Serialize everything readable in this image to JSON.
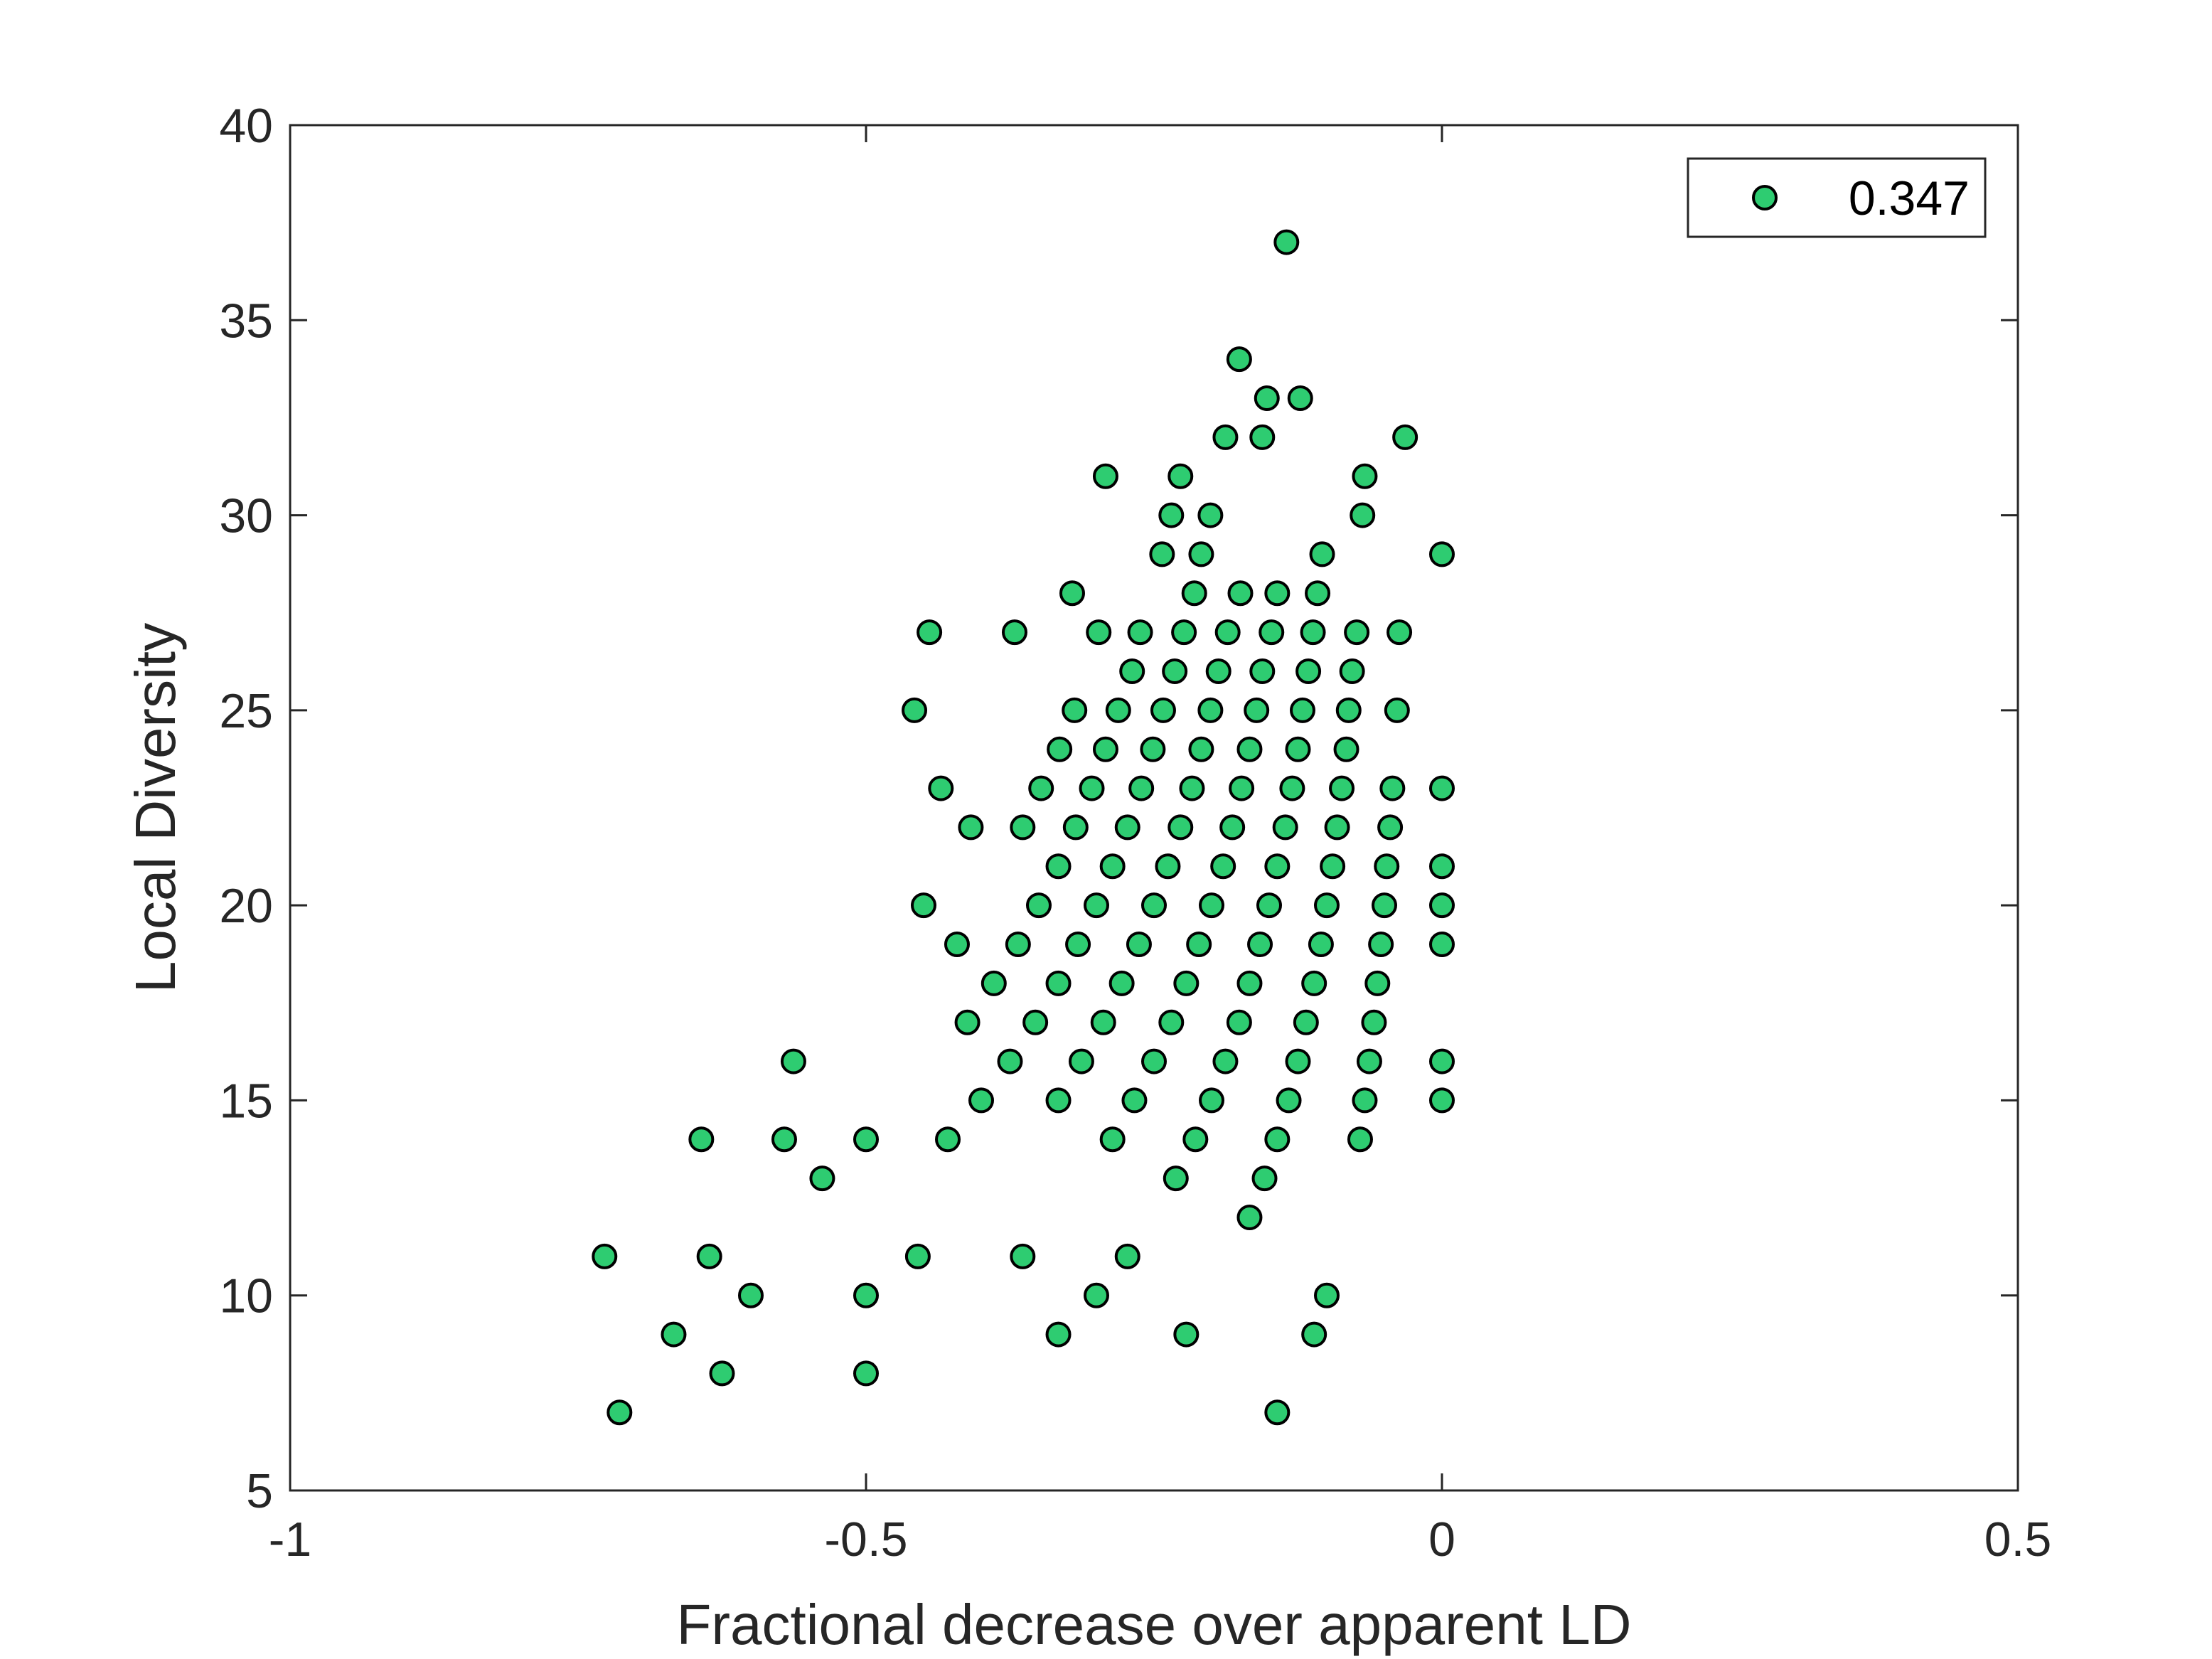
{
  "chart_data": {
    "type": "scatter",
    "title": "",
    "xlabel": "Fractional decrease over apparent LD",
    "ylabel": "Local Diversity",
    "xlim": [
      -1,
      0.5
    ],
    "ylim": [
      5,
      40
    ],
    "xticks": [
      -1,
      -0.5,
      0,
      0.5
    ],
    "xtick_labels": [
      "-1",
      "-0.5",
      "0",
      "0.5"
    ],
    "yticks": [
      5,
      10,
      15,
      20,
      25,
      30,
      35,
      40
    ],
    "ytick_labels": [
      "5",
      "10",
      "15",
      "20",
      "25",
      "30",
      "35",
      "40"
    ],
    "grid": false,
    "legend": {
      "placement": "top-right",
      "entries": [
        "0.347"
      ]
    },
    "series": [
      {
        "name": "0.347",
        "color": "#2ecc71",
        "points": [
          [
            -0.135,
            37
          ],
          [
            -0.176,
            34
          ],
          [
            -0.152,
            33
          ],
          [
            -0.123,
            33
          ],
          [
            -0.188,
            32
          ],
          [
            -0.156,
            32
          ],
          [
            -0.032,
            32
          ],
          [
            -0.292,
            31
          ],
          [
            -0.227,
            31
          ],
          [
            -0.067,
            31
          ],
          [
            -0.235,
            30
          ],
          [
            -0.201,
            30
          ],
          [
            -0.069,
            30
          ],
          [
            -0.243,
            29
          ],
          [
            -0.209,
            29
          ],
          [
            -0.104,
            29
          ],
          [
            0,
            29
          ],
          [
            -0.321,
            28
          ],
          [
            -0.215,
            28
          ],
          [
            -0.175,
            28
          ],
          [
            -0.143,
            28
          ],
          [
            -0.108,
            28
          ],
          [
            -0.445,
            27
          ],
          [
            -0.371,
            27
          ],
          [
            -0.298,
            27
          ],
          [
            -0.262,
            27
          ],
          [
            -0.224,
            27
          ],
          [
            -0.186,
            27
          ],
          [
            -0.148,
            27
          ],
          [
            -0.112,
            27
          ],
          [
            -0.074,
            27
          ],
          [
            -0.037,
            27
          ],
          [
            -0.269,
            26
          ],
          [
            -0.232,
            26
          ],
          [
            -0.194,
            26
          ],
          [
            -0.156,
            26
          ],
          [
            -0.116,
            26
          ],
          [
            -0.078,
            26
          ],
          [
            -0.458,
            25
          ],
          [
            -0.319,
            25
          ],
          [
            -0.281,
            25
          ],
          [
            -0.242,
            25
          ],
          [
            -0.201,
            25
          ],
          [
            -0.161,
            25
          ],
          [
            -0.121,
            25
          ],
          [
            -0.081,
            25
          ],
          [
            -0.039,
            25
          ],
          [
            -0.332,
            24
          ],
          [
            -0.292,
            24
          ],
          [
            -0.251,
            24
          ],
          [
            -0.209,
            24
          ],
          [
            -0.167,
            24
          ],
          [
            -0.125,
            24
          ],
          [
            -0.083,
            24
          ],
          [
            -0.435,
            23
          ],
          [
            -0.348,
            23
          ],
          [
            -0.304,
            23
          ],
          [
            -0.261,
            23
          ],
          [
            -0.217,
            23
          ],
          [
            -0.174,
            23
          ],
          [
            -0.13,
            23
          ],
          [
            -0.087,
            23
          ],
          [
            -0.043,
            23
          ],
          [
            0,
            23
          ],
          [
            -0.409,
            22
          ],
          [
            -0.364,
            22
          ],
          [
            -0.318,
            22
          ],
          [
            -0.273,
            22
          ],
          [
            -0.227,
            22
          ],
          [
            -0.182,
            22
          ],
          [
            -0.136,
            22
          ],
          [
            -0.091,
            22
          ],
          [
            -0.045,
            22
          ],
          [
            -0.333,
            21
          ],
          [
            -0.286,
            21
          ],
          [
            -0.238,
            21
          ],
          [
            -0.19,
            21
          ],
          [
            -0.143,
            21
          ],
          [
            -0.095,
            21
          ],
          [
            -0.048,
            21
          ],
          [
            0,
            21
          ],
          [
            -0.45,
            20
          ],
          [
            -0.35,
            20
          ],
          [
            -0.3,
            20
          ],
          [
            -0.25,
            20
          ],
          [
            -0.2,
            20
          ],
          [
            -0.15,
            20
          ],
          [
            -0.1,
            20
          ],
          [
            -0.05,
            20
          ],
          [
            0,
            20
          ],
          [
            -0.421,
            19
          ],
          [
            -0.368,
            19
          ],
          [
            -0.316,
            19
          ],
          [
            -0.263,
            19
          ],
          [
            -0.211,
            19
          ],
          [
            -0.158,
            19
          ],
          [
            -0.105,
            19
          ],
          [
            -0.053,
            19
          ],
          [
            0,
            19
          ],
          [
            -0.389,
            18
          ],
          [
            -0.333,
            18
          ],
          [
            -0.278,
            18
          ],
          [
            -0.222,
            18
          ],
          [
            -0.167,
            18
          ],
          [
            -0.111,
            18
          ],
          [
            -0.056,
            18
          ],
          [
            -0.412,
            17
          ],
          [
            -0.353,
            17
          ],
          [
            -0.294,
            17
          ],
          [
            -0.235,
            17
          ],
          [
            -0.176,
            17
          ],
          [
            -0.118,
            17
          ],
          [
            -0.059,
            17
          ],
          [
            -0.563,
            16
          ],
          [
            -0.375,
            16
          ],
          [
            -0.313,
            16
          ],
          [
            -0.25,
            16
          ],
          [
            -0.188,
            16
          ],
          [
            -0.125,
            16
          ],
          [
            -0.063,
            16
          ],
          [
            0,
            16
          ],
          [
            -0.4,
            15
          ],
          [
            -0.333,
            15
          ],
          [
            -0.267,
            15
          ],
          [
            -0.2,
            15
          ],
          [
            -0.133,
            15
          ],
          [
            -0.067,
            15
          ],
          [
            0,
            15
          ],
          [
            -0.643,
            14
          ],
          [
            -0.571,
            14
          ],
          [
            -0.5,
            14
          ],
          [
            -0.429,
            14
          ],
          [
            -0.286,
            14
          ],
          [
            -0.214,
            14
          ],
          [
            -0.143,
            14
          ],
          [
            -0.071,
            14
          ],
          [
            -0.538,
            13
          ],
          [
            -0.231,
            13
          ],
          [
            -0.154,
            13
          ],
          [
            -0.167,
            12
          ],
          [
            -0.727,
            11
          ],
          [
            -0.636,
            11
          ],
          [
            -0.455,
            11
          ],
          [
            -0.364,
            11
          ],
          [
            -0.273,
            11
          ],
          [
            -0.6,
            10
          ],
          [
            -0.5,
            10
          ],
          [
            -0.3,
            10
          ],
          [
            -0.1,
            10
          ],
          [
            -0.667,
            9
          ],
          [
            -0.333,
            9
          ],
          [
            -0.222,
            9
          ],
          [
            -0.111,
            9
          ],
          [
            -0.625,
            8
          ],
          [
            -0.5,
            8
          ],
          [
            -0.714,
            7
          ],
          [
            -0.143,
            7
          ]
        ]
      }
    ]
  }
}
